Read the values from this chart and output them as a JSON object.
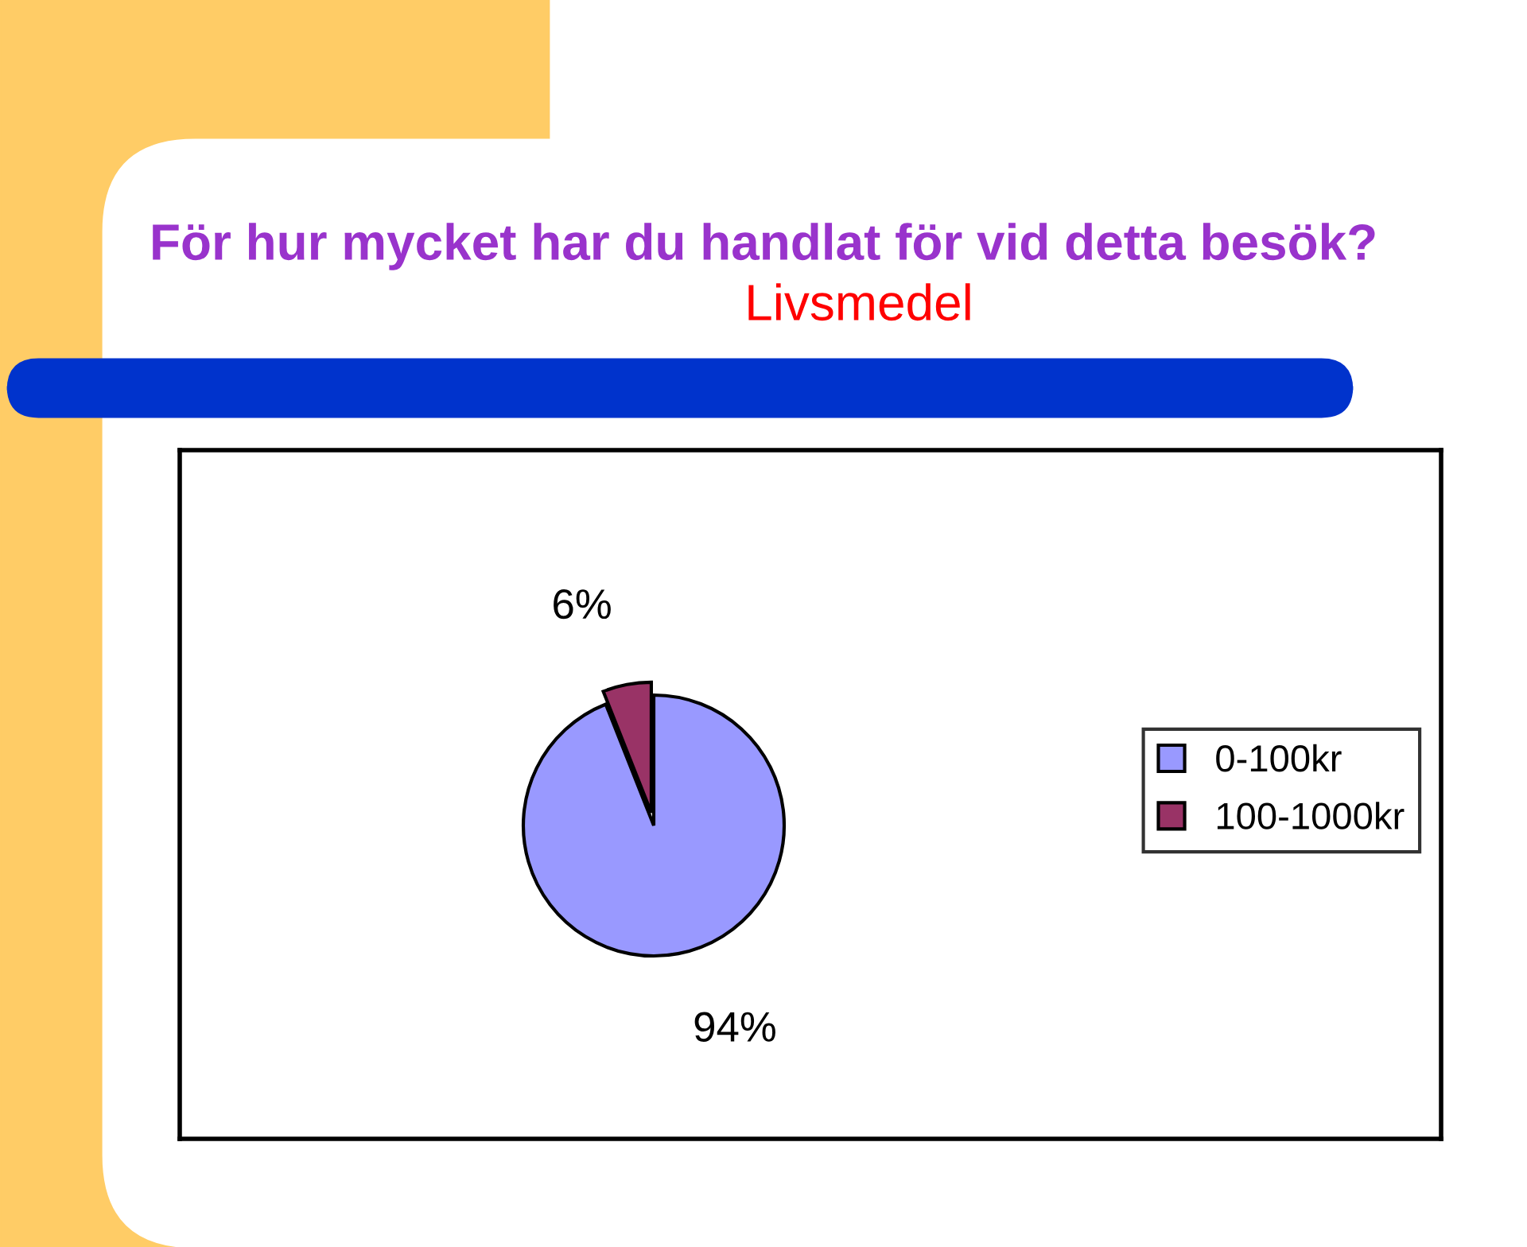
{
  "chart_data": {
    "type": "pie",
    "title": "För hur mycket har du handlat för vid detta besök?",
    "subtitle": "Livsmedel",
    "categories": [
      "0-100kr",
      "100-1000kr"
    ],
    "values": [
      94,
      6
    ],
    "colors": [
      "#9999ff",
      "#993366"
    ],
    "value_labels": [
      "94%",
      "6%"
    ],
    "legend": "right"
  }
}
